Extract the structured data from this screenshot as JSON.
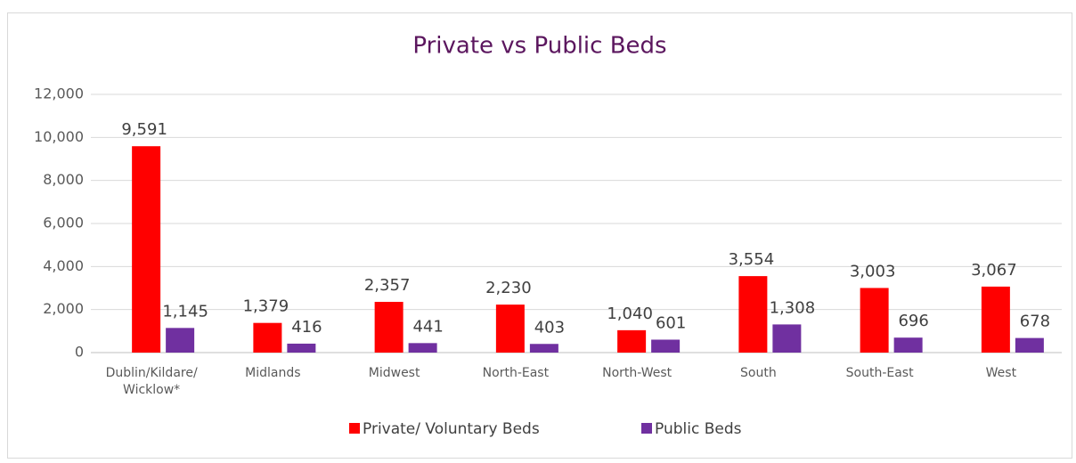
{
  "chart_data": {
    "type": "bar",
    "title": "Private vs Public Beds",
    "categories": [
      "Dublin/Kildare/Wicklow*",
      "Midlands",
      "Midwest",
      "North-East",
      "North-West",
      "South",
      "South-East",
      "West"
    ],
    "series": [
      {
        "name": "Private/ Voluntary Beds",
        "color": "#ff0000",
        "values": [
          9591,
          1379,
          2357,
          2230,
          1040,
          3554,
          3003,
          3067
        ],
        "value_labels": [
          "9,591",
          "1,379",
          "2,357",
          "2,230",
          "1,040",
          "3,554",
          "3,003",
          "3,067"
        ]
      },
      {
        "name": "Public Beds",
        "color": "#7030a0",
        "values": [
          1145,
          416,
          441,
          403,
          601,
          1308,
          696,
          678
        ],
        "value_labels": [
          "1,145",
          "416",
          "441",
          "403",
          "601",
          "1,308",
          "696",
          "678"
        ]
      }
    ],
    "ylim": [
      0,
      12000
    ],
    "yticks": [
      0,
      {
        "value": 2000,
        "label": "2,000"
      },
      {
        "value": 4000,
        "label": "4,000"
      },
      {
        "value": 6000,
        "label": "6,000"
      },
      {
        "value": 8000,
        "label": "8,000"
      },
      {
        "value": 10000,
        "label": "10,000"
      },
      {
        "value": 12000,
        "label": "12,000"
      }
    ],
    "grid": true,
    "legend": "bottom"
  }
}
